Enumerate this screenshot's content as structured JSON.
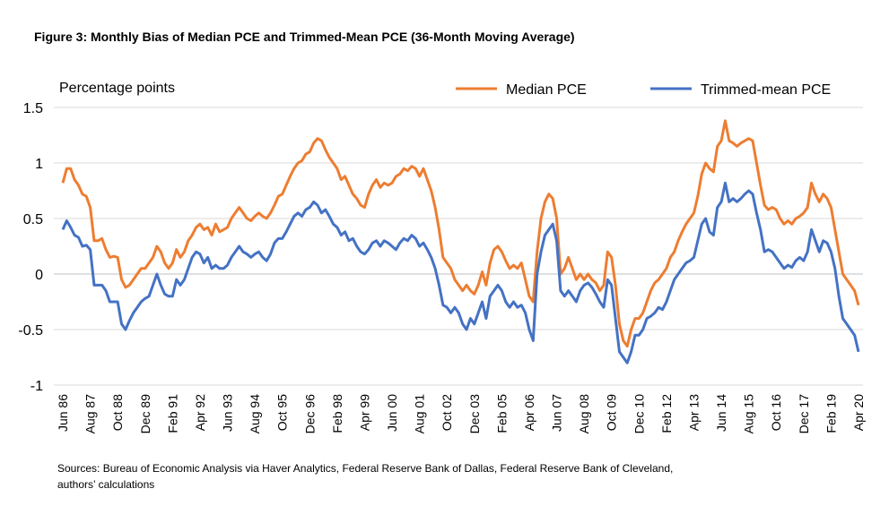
{
  "chart_data": {
    "type": "line",
    "title": "Figure 3: Monthly Bias of Median PCE and Trimmed-Mean PCE (36-Month Moving Average)",
    "y_label": "Percentage points",
    "source": [
      "Sources: Bureau of Economic Analysis via Haver Analytics, Federal Reserve Bank of Dallas, Federal Reserve Bank of Cleveland,",
      "authors’ calculations"
    ],
    "ylim": [
      -1,
      1.5
    ],
    "yticks": [
      1.5,
      1,
      0.5,
      0,
      -0.5,
      -1
    ],
    "grid": true,
    "legend": "top-right",
    "categories": [
      "Jun 86",
      null,
      null,
      null,
      null,
      null,
      null,
      "Aug 87",
      null,
      null,
      null,
      null,
      null,
      null,
      "Oct 88",
      null,
      null,
      null,
      null,
      null,
      null,
      "Dec 89",
      null,
      null,
      null,
      null,
      null,
      null,
      "Feb 91",
      null,
      null,
      null,
      null,
      null,
      null,
      "Apr 92",
      null,
      null,
      null,
      null,
      null,
      null,
      "Jun 93",
      null,
      null,
      null,
      null,
      null,
      null,
      "Aug 94",
      null,
      null,
      null,
      null,
      null,
      null,
      "Oct 95",
      null,
      null,
      null,
      null,
      null,
      null,
      "Dec 96",
      null,
      null,
      null,
      null,
      null,
      null,
      "Feb 98",
      null,
      null,
      null,
      null,
      null,
      null,
      "Apr 99",
      null,
      null,
      null,
      null,
      null,
      null,
      "Jun 00",
      null,
      null,
      null,
      null,
      null,
      null,
      "Aug 01",
      null,
      null,
      null,
      null,
      null,
      null,
      "Oct 02",
      null,
      null,
      null,
      null,
      null,
      null,
      "Dec 03",
      null,
      null,
      null,
      null,
      null,
      null,
      "Feb 05",
      null,
      null,
      null,
      null,
      null,
      null,
      "Apr 06",
      null,
      null,
      null,
      null,
      null,
      null,
      "Jun 07",
      null,
      null,
      null,
      null,
      null,
      null,
      "Aug 08",
      null,
      null,
      null,
      null,
      null,
      null,
      "Oct 09",
      null,
      null,
      null,
      null,
      null,
      null,
      "Dec 10",
      null,
      null,
      null,
      null,
      null,
      null,
      "Feb 12",
      null,
      null,
      null,
      null,
      null,
      null,
      "Apr 13",
      null,
      null,
      null,
      null,
      null,
      null,
      "Jun 14",
      null,
      null,
      null,
      null,
      null,
      null,
      "Aug 15",
      null,
      null,
      null,
      null,
      null,
      null,
      "Oct 16",
      null,
      null,
      null,
      null,
      null,
      null,
      "Dec 17",
      null,
      null,
      null,
      null,
      null,
      null,
      "Feb 19",
      null,
      null,
      null,
      null,
      null,
      null,
      "Apr 20"
    ],
    "series": [
      {
        "name": "Median PCE",
        "color": "#ed7d31",
        "values": [
          0.82,
          0.95,
          0.95,
          0.85,
          0.8,
          0.72,
          0.7,
          0.6,
          0.3,
          0.3,
          0.32,
          0.22,
          0.15,
          0.16,
          0.15,
          -0.05,
          -0.12,
          -0.1,
          -0.05,
          0.0,
          0.05,
          0.05,
          0.1,
          0.15,
          0.25,
          0.2,
          0.1,
          0.05,
          0.1,
          0.22,
          0.15,
          0.2,
          0.3,
          0.35,
          0.42,
          0.45,
          0.4,
          0.42,
          0.35,
          0.45,
          0.38,
          0.4,
          0.42,
          0.5,
          0.55,
          0.6,
          0.55,
          0.5,
          0.48,
          0.52,
          0.55,
          0.52,
          0.5,
          0.55,
          0.62,
          0.7,
          0.72,
          0.8,
          0.88,
          0.95,
          1.0,
          1.02,
          1.08,
          1.1,
          1.18,
          1.22,
          1.2,
          1.12,
          1.05,
          1.0,
          0.95,
          0.85,
          0.88,
          0.8,
          0.72,
          0.68,
          0.62,
          0.6,
          0.72,
          0.8,
          0.85,
          0.78,
          0.82,
          0.8,
          0.82,
          0.88,
          0.9,
          0.95,
          0.93,
          0.97,
          0.95,
          0.88,
          0.95,
          0.85,
          0.75,
          0.6,
          0.4,
          0.15,
          0.1,
          0.05,
          -0.05,
          -0.1,
          -0.15,
          -0.1,
          -0.15,
          -0.18,
          -0.1,
          0.02,
          -0.1,
          0.1,
          0.22,
          0.25,
          0.2,
          0.12,
          0.05,
          0.08,
          0.05,
          0.1,
          -0.05,
          -0.2,
          -0.25,
          0.2,
          0.5,
          0.65,
          0.72,
          0.68,
          0.5,
          0.0,
          0.05,
          0.15,
          0.05,
          -0.05,
          0.0,
          -0.05,
          0.0,
          -0.05,
          -0.08,
          -0.15,
          -0.1,
          0.2,
          0.15,
          -0.1,
          -0.45,
          -0.6,
          -0.65,
          -0.5,
          -0.4,
          -0.4,
          -0.35,
          -0.25,
          -0.15,
          -0.08,
          -0.05,
          0.0,
          0.05,
          0.15,
          0.2,
          0.3,
          0.38,
          0.45,
          0.5,
          0.55,
          0.7,
          0.9,
          1.0,
          0.95,
          0.92,
          1.15,
          1.2,
          1.38,
          1.2,
          1.18,
          1.15,
          1.18,
          1.2,
          1.22,
          1.2,
          1.0,
          0.8,
          0.62,
          0.58,
          0.6,
          0.58,
          0.5,
          0.45,
          0.48,
          0.45,
          0.5,
          0.52,
          0.55,
          0.6,
          0.82,
          0.72,
          0.65,
          0.72,
          0.68,
          0.6,
          0.4,
          0.2,
          0.0,
          -0.05,
          -0.1,
          -0.15,
          -0.28
        ]
      },
      {
        "name": "Trimmed-mean PCE",
        "color": "#4472c4",
        "values": [
          0.4,
          0.48,
          0.42,
          0.35,
          0.33,
          0.25,
          0.26,
          0.22,
          -0.1,
          -0.1,
          -0.1,
          -0.15,
          -0.25,
          -0.25,
          -0.25,
          -0.45,
          -0.5,
          -0.42,
          -0.35,
          -0.3,
          -0.25,
          -0.22,
          -0.2,
          -0.1,
          0.0,
          -0.1,
          -0.18,
          -0.2,
          -0.2,
          -0.05,
          -0.1,
          -0.05,
          0.05,
          0.15,
          0.2,
          0.18,
          0.1,
          0.15,
          0.05,
          0.08,
          0.05,
          0.05,
          0.08,
          0.15,
          0.2,
          0.25,
          0.2,
          0.18,
          0.15,
          0.18,
          0.2,
          0.15,
          0.12,
          0.18,
          0.28,
          0.32,
          0.32,
          0.38,
          0.45,
          0.52,
          0.55,
          0.52,
          0.58,
          0.6,
          0.65,
          0.62,
          0.55,
          0.58,
          0.52,
          0.45,
          0.42,
          0.35,
          0.38,
          0.3,
          0.32,
          0.25,
          0.2,
          0.18,
          0.22,
          0.28,
          0.3,
          0.25,
          0.3,
          0.28,
          0.25,
          0.22,
          0.28,
          0.32,
          0.3,
          0.35,
          0.32,
          0.25,
          0.28,
          0.22,
          0.15,
          0.05,
          -0.1,
          -0.28,
          -0.3,
          -0.35,
          -0.3,
          -0.35,
          -0.45,
          -0.5,
          -0.4,
          -0.45,
          -0.35,
          -0.25,
          -0.4,
          -0.2,
          -0.15,
          -0.1,
          -0.15,
          -0.25,
          -0.3,
          -0.25,
          -0.3,
          -0.28,
          -0.35,
          -0.5,
          -0.6,
          0.0,
          0.2,
          0.35,
          0.4,
          0.45,
          0.3,
          -0.15,
          -0.2,
          -0.15,
          -0.2,
          -0.25,
          -0.15,
          -0.1,
          -0.08,
          -0.12,
          -0.18,
          -0.25,
          -0.3,
          -0.05,
          -0.1,
          -0.4,
          -0.7,
          -0.75,
          -0.8,
          -0.7,
          -0.55,
          -0.55,
          -0.5,
          -0.4,
          -0.38,
          -0.35,
          -0.3,
          -0.32,
          -0.25,
          -0.15,
          -0.05,
          0.0,
          0.05,
          0.1,
          0.12,
          0.15,
          0.3,
          0.45,
          0.5,
          0.38,
          0.35,
          0.6,
          0.65,
          0.82,
          0.65,
          0.68,
          0.65,
          0.68,
          0.72,
          0.75,
          0.72,
          0.55,
          0.4,
          0.2,
          0.22,
          0.2,
          0.15,
          0.1,
          0.05,
          0.08,
          0.06,
          0.12,
          0.15,
          0.12,
          0.2,
          0.4,
          0.3,
          0.2,
          0.3,
          0.28,
          0.2,
          0.05,
          -0.2,
          -0.4,
          -0.45,
          -0.5,
          -0.55,
          -0.7
        ]
      }
    ]
  }
}
